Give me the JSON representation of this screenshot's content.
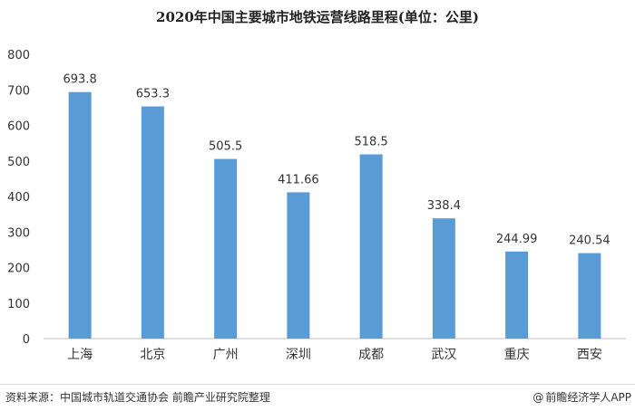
{
  "chart_data": {
    "type": "bar",
    "title": "2020年中国主要城市地铁运营线路里程(单位：公里)",
    "categories": [
      "上海",
      "北京",
      "广州",
      "深圳",
      "成都",
      "武汉",
      "重庆",
      "西安"
    ],
    "values": [
      693.8,
      653.3,
      505.5,
      411.66,
      518.5,
      338.4,
      244.99,
      240.54
    ],
    "value_labels": [
      "693.8",
      "653.3",
      "505.5",
      "411.66",
      "518.5",
      "338.4",
      "244.99",
      "240.54"
    ],
    "xlabel": "",
    "ylabel": "",
    "ylim": [
      0,
      800
    ],
    "yticks": [
      0,
      100,
      200,
      300,
      400,
      500,
      600,
      700,
      800
    ],
    "grid": false,
    "legend": "none",
    "bar_color": "#5b9bd5"
  },
  "footer": {
    "source": "资料来源：中国城市轨道交通协会 前瞻产业研究院整理",
    "credit": "前瞻经济学人APP",
    "logo_icon": "at-sign-icon"
  }
}
